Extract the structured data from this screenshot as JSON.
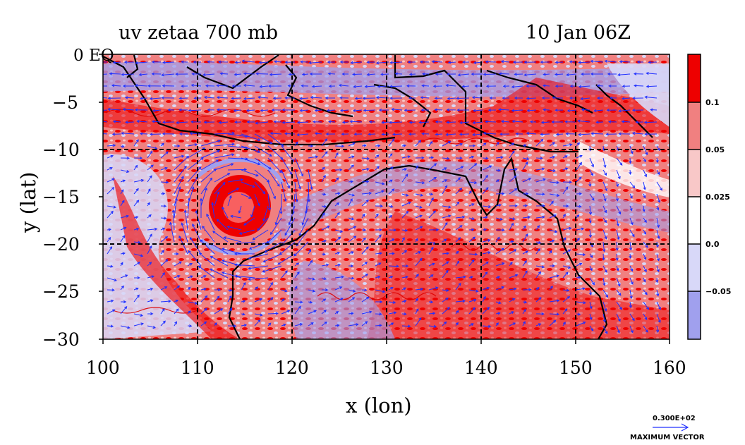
{
  "header": {
    "title": "uv zetaa 700 mb",
    "date": "10 Jan 06Z"
  },
  "axes": {
    "xlabel": "x (lon)",
    "ylabel": "y (lat)",
    "x_ticks": [
      "100",
      "110",
      "120",
      "130",
      "140",
      "150",
      "160"
    ],
    "y_ticks": [
      "0 EQ",
      "−5",
      "−10",
      "−15",
      "−20",
      "−25",
      "−30"
    ],
    "xlim": [
      100,
      160
    ],
    "ylim": [
      -30,
      0
    ]
  },
  "colorbar": {
    "labels": [
      "0.1",
      "0.05",
      "0.025",
      "0.0",
      "−0.05"
    ],
    "colors": [
      "#ee0000",
      "#f08080",
      "#f8c8c8",
      "#ffffff",
      "#d8d8f8",
      "#a0a0ee"
    ]
  },
  "vector_key": {
    "magnitude": "0.300E+02",
    "label": "MAXIMUM VECTOR"
  },
  "colors": {
    "strong_positive": "#ee0000",
    "positive": "#f08080",
    "light_positive": "#f8c8c8",
    "negative": "#d8d8f8",
    "strong_negative": "#a0a0ee",
    "vectors": "#2030ff",
    "coast": "#000000"
  }
}
